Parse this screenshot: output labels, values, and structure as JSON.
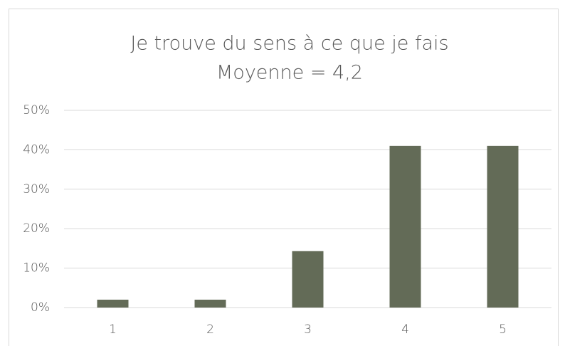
{
  "chart_data": {
    "type": "bar",
    "title": "Je trouve du sens à ce que je fais",
    "subtitle": "Moyenne = 4,2",
    "categories": [
      "1",
      "2",
      "3",
      "4",
      "5"
    ],
    "values": [
      2,
      2,
      14.3,
      41,
      41
    ],
    "color": "#636b57",
    "ylim": [
      0,
      50
    ],
    "yticks": [
      {
        "value": 0,
        "label": "0%"
      },
      {
        "value": 10,
        "label": "10%"
      },
      {
        "value": 20,
        "label": "20%"
      },
      {
        "value": 30,
        "label": "30%"
      },
      {
        "value": 40,
        "label": "40%"
      },
      {
        "value": 50,
        "label": "50%"
      }
    ],
    "grid": true
  }
}
